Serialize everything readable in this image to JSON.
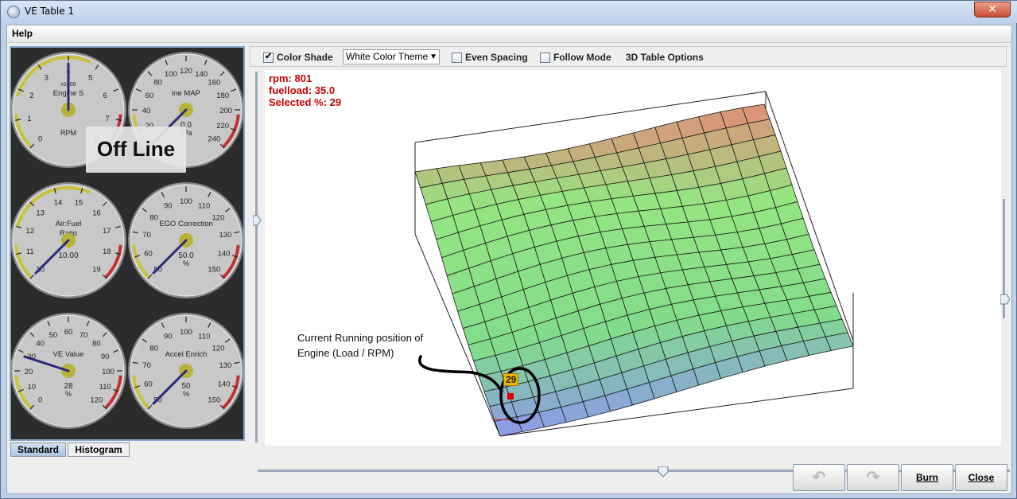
{
  "window": {
    "title": "VE Table 1",
    "close_symbol": "✕"
  },
  "menu": {
    "help": "Help"
  },
  "gauges": [
    {
      "title": "Engine Speed",
      "title_visible": "Engine S",
      "multiplier": "x1000",
      "unit": "RPM",
      "ticks": [
        "0",
        "1",
        "2",
        "3",
        "4",
        "5",
        "6",
        "7",
        "8"
      ],
      "readout": "",
      "min": 0,
      "max": 8,
      "needle": 0.3
    },
    {
      "title": "Engine MAP",
      "title_visible": "ine MAP",
      "unit": "kPa",
      "ticks": [
        "0",
        "20",
        "40",
        "60",
        "80",
        "100",
        "120",
        "140",
        "160",
        "180",
        "200",
        "220",
        "240"
      ],
      "readout": "0.0",
      "min": 0,
      "max": 240,
      "needle": 0.0
    },
    {
      "title": "Air:Fuel",
      "title2": "Ratio",
      "unit": "",
      "ticks": [
        "10",
        "11",
        "12",
        "13",
        "14",
        "15",
        "16",
        "17",
        "18",
        "19"
      ],
      "readout": "10.00",
      "min": 10,
      "max": 19,
      "needle": 10.0
    },
    {
      "title": "EGO Correction",
      "unit": "%",
      "ticks": [
        "50",
        "60",
        "70",
        "80",
        "90",
        "100",
        "110",
        "120",
        "130",
        "140",
        "150"
      ],
      "readout": "50.0",
      "min": 50,
      "max": 150,
      "needle": 50.0
    },
    {
      "title": "VE Value",
      "unit": "%",
      "ticks": [
        "0",
        "10",
        "20",
        "30",
        "40",
        "50",
        "60",
        "70",
        "80",
        "90",
        "100",
        "110",
        "120"
      ],
      "readout": "28",
      "min": 0,
      "max": 120,
      "needle": 28
    },
    {
      "title": "Accel Enrich",
      "unit": "%",
      "ticks": [
        "50",
        "60",
        "70",
        "80",
        "90",
        "100",
        "110",
        "120",
        "130",
        "140",
        "150"
      ],
      "readout": "50",
      "min": 50,
      "max": 150,
      "needle": 50
    }
  ],
  "offline_label": "Off Line",
  "tabs": [
    {
      "label": "Standard",
      "active": true
    },
    {
      "label": "Histogram",
      "active": false
    }
  ],
  "toolbar": {
    "color_shade": {
      "label": "Color Shade",
      "checked": true
    },
    "theme_select": {
      "value": "White Color Theme"
    },
    "even_spacing": {
      "label": "Even Spacing",
      "checked": false
    },
    "follow_mode": {
      "label": "Follow Mode",
      "checked": false
    },
    "table_options": "3D Table Options"
  },
  "status": {
    "rpm": "rpm: 801",
    "fuelload": "fuelload: 35.0",
    "selected": "Selected %: 29"
  },
  "annotation": {
    "line1": "Current Running position of",
    "line2": "Engine (Load / RPM)"
  },
  "cursor_value": "29",
  "buttons": {
    "undo": "↶",
    "redo": "↷",
    "burn": "Burn",
    "close": "Close"
  },
  "colors": {
    "gauge_face": "#c8c8c8",
    "needle": "#2a2a7a",
    "redline": "#c43030",
    "yellowline": "#c9c23a",
    "status_red": "#cc0000"
  }
}
